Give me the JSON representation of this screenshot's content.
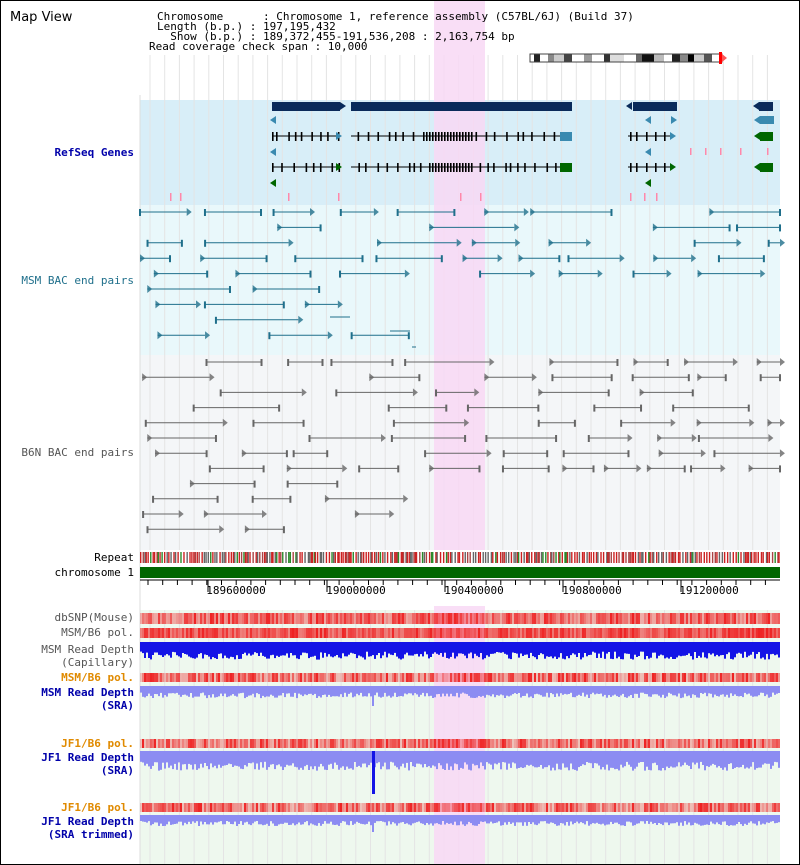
{
  "app": {
    "title": "Map View"
  },
  "header": {
    "lines": [
      "Chromosome      : Chromosome 1, reference assembly (C57BL/6J) (Build 37)",
      "Length (b.p.) : 197,195,432",
      "  Show (b.p.) : 189,372,455-191,536,208 : 2,163,754 bp",
      "Read coverage check span : 10,000"
    ]
  },
  "tracks": {
    "refseq": "RefSeq Genes",
    "msm_bac": "MSM BAC end pairs",
    "b6n_bac": "B6N BAC end pairs",
    "repeat": "Repeat",
    "chromosome": "chromosome 1",
    "dbsnp": "dbSNP(Mouse)",
    "msm_pol": "MSM/B6 pol.",
    "msm_depth_cap_1": "MSM Read Depth",
    "msm_depth_cap_2": "(Capillary)",
    "msm_pol_2": "MSM/B6 pol.",
    "msm_depth_sra_1": "MSM Read Depth",
    "msm_depth_sra_2": "(SRA)",
    "jf1_pol": "JF1/B6 pol.",
    "jf1_depth_sra_1": "JF1 Read Depth",
    "jf1_depth_sra_2": "(SRA)",
    "jf1_pol_2": "JF1/B6 pol.",
    "jf1_depth_trim_1": "JF1 Read Depth",
    "jf1_depth_trim_2": "(SRA trimmed)"
  },
  "axis": {
    "ticks": [
      "189600000",
      "190000000",
      "190400000",
      "190800000",
      "191200000"
    ]
  },
  "colors": {
    "refseq_bg": "#d8eef8",
    "bac_bg": "#e9f8fb",
    "b6n_bg": "#f4f6f8",
    "lower_bg": "#eef8ee",
    "highlight": "#f8d8f4",
    "msm_line": "#1f6f8b",
    "b6n_line": "#666666",
    "gene_dark": "#0a2a5a",
    "gene_teal": "#3a8ab0",
    "gene_green": "#006600",
    "chrom_green": "#006600",
    "depth_blue": "#1414e6",
    "depth_light": "#8c8cf2",
    "poly_red": "#ee2222"
  },
  "icons": {
    "ideogram": "chromosome-ideogram-icon"
  }
}
